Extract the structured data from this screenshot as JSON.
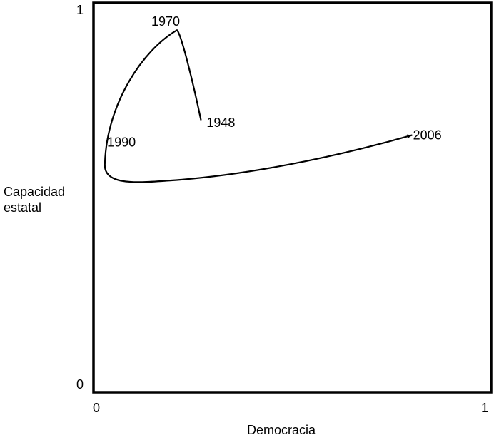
{
  "chart_data": {
    "type": "line",
    "title": "",
    "xlabel": "Democracia",
    "ylabel_lines": [
      "Capacidad",
      "estatal"
    ],
    "xlim": [
      0,
      1
    ],
    "ylim": [
      0,
      1
    ],
    "x_ticks": [
      {
        "value": 0,
        "label": "0"
      },
      {
        "value": 1,
        "label": "1"
      }
    ],
    "y_ticks": [
      {
        "value": 0,
        "label": "0"
      },
      {
        "value": 1,
        "label": "1"
      }
    ],
    "grid": false,
    "legend": "none",
    "line_color": "#000000",
    "series": [
      {
        "points": [
          {
            "x": 0.27,
            "y": 0.7
          },
          {
            "x": 0.21,
            "y": 0.93
          },
          {
            "x": 0.02,
            "y": 0.62
          },
          {
            "x": 0.8,
            "y": 0.66
          }
        ],
        "arrow_at_end": true
      }
    ],
    "annotations": [
      {
        "text": "1948",
        "x": 0.27,
        "y": 0.7
      },
      {
        "text": "1970",
        "x": 0.21,
        "y": 0.93
      },
      {
        "text": "1990",
        "x": 0.02,
        "y": 0.62
      },
      {
        "text": "2006",
        "x": 0.8,
        "y": 0.66
      }
    ]
  }
}
